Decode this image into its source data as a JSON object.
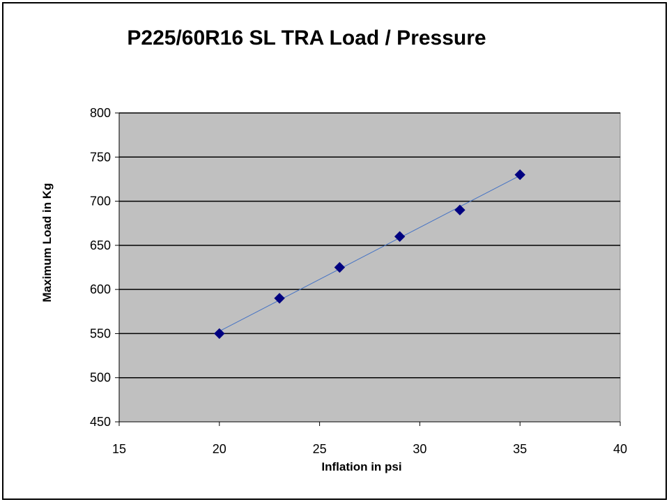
{
  "chart_data": {
    "type": "scatter",
    "title": "P225/60R16 SL TRA Load / Pressure",
    "xlabel": "Inflation in psi",
    "ylabel": "Maximum Load in Kg",
    "xlim": [
      15,
      40
    ],
    "ylim": [
      450,
      800
    ],
    "xticks": [
      15,
      20,
      25,
      30,
      35,
      40
    ],
    "yticks": [
      450,
      500,
      550,
      600,
      650,
      700,
      750,
      800
    ],
    "grid": "horizontal",
    "legend": "none",
    "series": [
      {
        "x": [
          20,
          23,
          26,
          29,
          32,
          35
        ],
        "y": [
          550,
          590,
          625,
          660,
          690,
          730
        ],
        "marker": "diamond",
        "marker_color": "#000080",
        "line": "linear-trendline",
        "line_color": "#4472C4"
      }
    ],
    "plot_background": "#C0C0C0",
    "gridline_color": "#000000"
  }
}
